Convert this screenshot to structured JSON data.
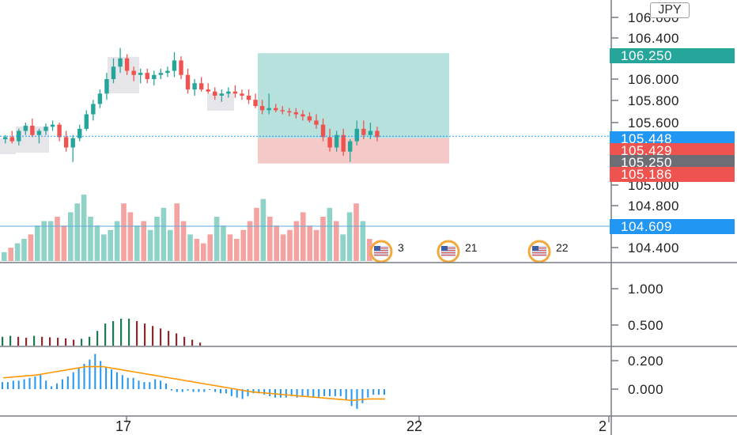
{
  "symbol_currency": "JPY",
  "price_axis": {
    "ticks": [
      "106.600",
      "106.400",
      "106.000",
      "105.800",
      "105.600",
      "105.000",
      "104.800",
      "104.400"
    ]
  },
  "price_labels": {
    "target": "106.250",
    "current": "105.448",
    "entry": "105.429",
    "stop_level": "105.250",
    "stop": "105.186",
    "line_level": "104.609"
  },
  "indicator_axis": {
    "upper_ticks": [
      "1.000",
      "0.500"
    ],
    "lower_ticks": [
      "0.200",
      "0.000"
    ]
  },
  "time_axis": {
    "labels": [
      "17",
      "22",
      "2"
    ]
  },
  "events": [
    {
      "icon": "us-flag-event-icon",
      "text": "3"
    },
    {
      "icon": "us-flag-event-icon",
      "text": "21"
    },
    {
      "icon": "us-flag-event-icon",
      "text": "22"
    }
  ],
  "colors": {
    "up": "#26a69a",
    "down": "#ef5350",
    "up_volume": "#8fd3c8",
    "down_volume": "#f4a3a1",
    "label_blue": "#2196f3",
    "label_red": "#ef5350",
    "label_gray": "#6b6e74",
    "target_zone": "#b6e1dc",
    "stop_zone": "#f6c9c9",
    "signal_line": "#ff9800",
    "momentum_up": "#1b7a4f",
    "momentum_down": "#8a2b2b"
  },
  "chart_data": {
    "type": "candlestick",
    "price_ylim": [
      104.4,
      106.7
    ],
    "candles": [
      [
        105.42,
        105.46,
        105.38,
        105.44
      ],
      [
        105.44,
        105.5,
        105.38,
        105.4
      ],
      [
        105.4,
        105.52,
        105.36,
        105.5
      ],
      [
        105.5,
        105.58,
        105.46,
        105.55
      ],
      [
        105.55,
        105.62,
        105.44,
        105.46
      ],
      [
        105.46,
        105.52,
        105.38,
        105.5
      ],
      [
        105.5,
        105.57,
        105.46,
        105.54
      ],
      [
        105.54,
        105.6,
        105.5,
        105.56
      ],
      [
        105.56,
        105.58,
        105.4,
        105.44
      ],
      [
        105.44,
        105.5,
        105.3,
        105.34
      ],
      [
        105.34,
        105.46,
        105.2,
        105.43
      ],
      [
        105.43,
        105.56,
        105.4,
        105.52
      ],
      [
        105.52,
        105.7,
        105.5,
        105.66
      ],
      [
        105.66,
        105.8,
        105.6,
        105.76
      ],
      [
        105.76,
        105.9,
        105.72,
        105.86
      ],
      [
        105.86,
        106.06,
        105.8,
        106.0
      ],
      [
        106.0,
        106.2,
        105.96,
        106.12
      ],
      [
        106.12,
        106.3,
        106.06,
        106.2
      ],
      [
        106.2,
        106.24,
        106.04,
        106.08
      ],
      [
        106.08,
        106.12,
        105.98,
        106.04
      ],
      [
        106.04,
        106.1,
        105.96,
        106.06
      ],
      [
        106.06,
        106.1,
        105.96,
        106.0
      ],
      [
        106.0,
        106.08,
        105.94,
        106.04
      ],
      [
        106.04,
        106.1,
        106.0,
        106.06
      ],
      [
        106.06,
        106.12,
        106.02,
        106.08
      ],
      [
        106.08,
        106.26,
        106.02,
        106.18
      ],
      [
        106.18,
        106.22,
        106.0,
        106.04
      ],
      [
        106.04,
        106.1,
        105.86,
        105.9
      ],
      [
        105.9,
        106.0,
        105.84,
        105.96
      ],
      [
        105.96,
        106.02,
        105.88,
        105.9
      ],
      [
        105.9,
        105.96,
        105.86,
        105.88
      ],
      [
        105.88,
        105.92,
        105.8,
        105.84
      ],
      [
        105.84,
        105.9,
        105.78,
        105.86
      ],
      [
        105.86,
        105.92,
        105.82,
        105.88
      ],
      [
        105.88,
        105.94,
        105.82,
        105.86
      ],
      [
        105.86,
        105.9,
        105.8,
        105.84
      ],
      [
        105.84,
        105.9,
        105.76,
        105.8
      ],
      [
        105.8,
        105.86,
        105.72,
        105.74
      ],
      [
        105.74,
        105.8,
        105.66,
        105.7
      ],
      [
        105.7,
        105.86,
        105.66,
        105.72
      ],
      [
        105.72,
        105.76,
        105.68,
        105.7
      ],
      [
        105.7,
        105.74,
        105.66,
        105.69
      ],
      [
        105.69,
        105.72,
        105.64,
        105.68
      ],
      [
        105.68,
        105.72,
        105.62,
        105.66
      ],
      [
        105.66,
        105.7,
        105.6,
        105.64
      ],
      [
        105.64,
        105.68,
        105.58,
        105.6
      ],
      [
        105.6,
        105.66,
        105.52,
        105.56
      ],
      [
        105.56,
        105.62,
        105.4,
        105.44
      ],
      [
        105.44,
        105.52,
        105.3,
        105.34
      ],
      [
        105.34,
        105.5,
        105.3,
        105.46
      ],
      [
        105.46,
        105.52,
        105.26,
        105.3
      ],
      [
        105.3,
        105.42,
        105.2,
        105.4
      ],
      [
        105.4,
        105.6,
        105.36,
        105.52
      ],
      [
        105.52,
        105.6,
        105.42,
        105.46
      ],
      [
        105.46,
        105.58,
        105.42,
        105.5
      ],
      [
        105.5,
        105.54,
        105.4,
        105.44
      ]
    ],
    "volume": [
      2,
      3,
      4,
      5,
      6,
      8,
      9,
      9,
      10,
      8,
      11,
      13,
      15,
      10,
      8,
      6,
      7,
      9,
      13,
      11,
      8,
      9,
      7,
      10,
      12,
      7,
      13,
      9,
      6,
      5,
      4,
      6,
      10,
      8,
      6,
      5,
      7,
      9,
      12,
      14,
      10,
      8,
      6,
      7,
      9,
      11,
      8,
      7,
      10,
      12,
      9,
      6,
      11,
      13,
      9,
      5
    ],
    "momentum_ylim": [
      0,
      1.2
    ],
    "momentum_histogram": [
      0.18,
      0.2,
      0.18,
      0.16,
      0.2,
      0.18,
      0.17,
      0.16,
      0.15,
      0.12,
      0.14,
      0.18,
      0.3,
      0.45,
      0.5,
      0.55,
      0.55,
      0.5,
      0.45,
      0.4,
      0.35,
      0.3,
      0.25,
      0.18,
      0.12,
      0.06
    ],
    "macd_ylim": [
      -0.15,
      0.3
    ],
    "macd_histogram": [
      0.05,
      0.05,
      0.06,
      0.06,
      0.07,
      0.08,
      0.09,
      0.1,
      0.06,
      0.02,
      0.04,
      0.07,
      0.09,
      0.12,
      0.15,
      0.18,
      0.21,
      0.25,
      0.2,
      0.16,
      0.14,
      0.12,
      0.1,
      0.08,
      0.08,
      0.06,
      0.05,
      0.05,
      0.07,
      0.06,
      0.04,
      -0.01,
      -0.02,
      -0.02,
      -0.01,
      -0.02,
      -0.02,
      -0.02,
      0.0,
      -0.02,
      -0.03,
      -0.03,
      -0.05,
      -0.06,
      -0.07,
      -0.05,
      -0.03,
      -0.03,
      -0.04,
      -0.05,
      -0.06,
      -0.06,
      -0.06,
      -0.05,
      -0.06,
      -0.05,
      -0.05,
      -0.06,
      -0.06,
      -0.05,
      -0.05,
      -0.05,
      -0.05,
      -0.08,
      -0.12,
      -0.14,
      -0.1,
      -0.06,
      -0.04,
      -0.04,
      -0.04
    ],
    "macd_signal": [
      0.08,
      0.09,
      0.1,
      0.12,
      0.14,
      0.16,
      0.16,
      0.14,
      0.12,
      0.1,
      0.08,
      0.06,
      0.04,
      0.02,
      0.0,
      -0.02,
      -0.03,
      -0.04,
      -0.05,
      -0.06,
      -0.07,
      -0.08,
      -0.07,
      -0.07
    ]
  }
}
